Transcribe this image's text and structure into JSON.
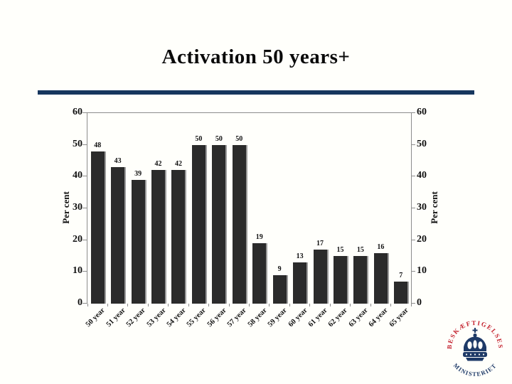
{
  "slide": {
    "title": "Activation 50 years+",
    "background": "#FFFFFB",
    "accent_color": "#17375E"
  },
  "chart_data": {
    "type": "bar",
    "title": "Activation 50 years+",
    "categories": [
      "50 year",
      "51 year",
      "52 year",
      "53 year",
      "54 year",
      "55 year",
      "56 year",
      "57 year",
      "58 year",
      "59 year",
      "60 year",
      "61 year",
      "62 year",
      "63 year",
      "64 year",
      "65 year"
    ],
    "values": [
      48,
      43,
      39,
      42,
      42,
      50,
      50,
      50,
      19,
      9,
      13,
      17,
      15,
      15,
      16,
      7
    ],
    "data_labels": true,
    "ylabel_left": "Per cent",
    "ylabel_right": "Per cent",
    "ylim": [
      0,
      60
    ],
    "yticks": [
      0,
      10,
      20,
      30,
      40,
      50,
      60
    ],
    "legend": "none",
    "grid": false,
    "bar_color": "#2B2B2B",
    "bar_shadow_color": "#9B9B9B",
    "axis_color": "#8C8C8C",
    "x_label_rotation_deg": -45
  },
  "logo": {
    "arc_top_text": "BESKÆFTIGELSES",
    "arc_bottom_text": "MINISTERIET",
    "red": "#C3202C",
    "navy": "#1E3A68",
    "icon": "crown-icon"
  }
}
